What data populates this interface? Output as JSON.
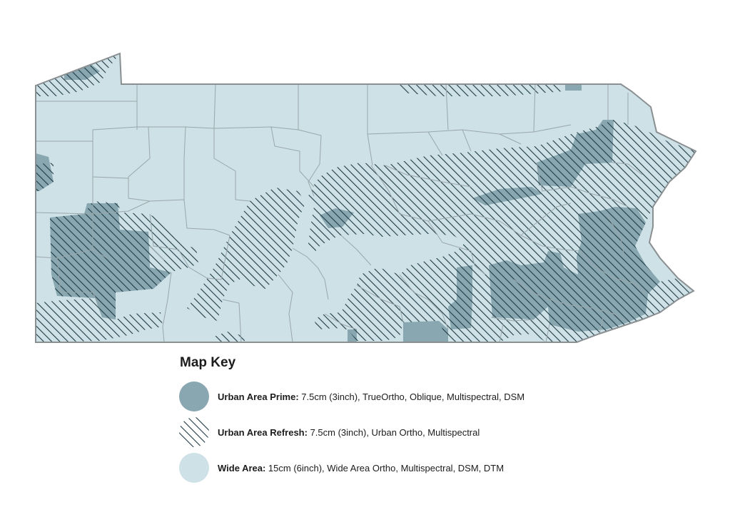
{
  "colors": {
    "prime": "#88a7b0",
    "wide": "#cde1e6",
    "hatch": "#1f3a44",
    "border": "#9aa7ac",
    "outline": "#8a8f92"
  },
  "legend": {
    "title": "Map Key",
    "items": [
      {
        "key": "urban-area-prime",
        "swatch": "solid-prime",
        "name": "Urban Area Prime:",
        "detail": " 7.5cm (3inch), TrueOrtho, Oblique, Multispectral, DSM"
      },
      {
        "key": "urban-area-refresh",
        "swatch": "hatched",
        "name": "Urban Area Refresh:",
        "detail": " 7.5cm (3inch), Urban Ortho, Multispectral"
      },
      {
        "key": "wide-area",
        "swatch": "solid-wide",
        "name": "Wide Area:",
        "detail": " 15cm (6inch), Wide Area Ortho, Multispectral, DSM, DTM"
      }
    ]
  }
}
